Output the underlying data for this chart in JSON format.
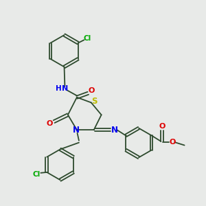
{
  "bg_color": "#e8eae8",
  "bond_color": "#2d4a2d",
  "atom_colors": {
    "N": "#0000ee",
    "O": "#dd0000",
    "S": "#bbbb00",
    "Cl": "#00aa00",
    "H": "#0000ee",
    "C": "#2d4a2d"
  },
  "figsize": [
    3.0,
    3.0
  ],
  "dpi": 100
}
